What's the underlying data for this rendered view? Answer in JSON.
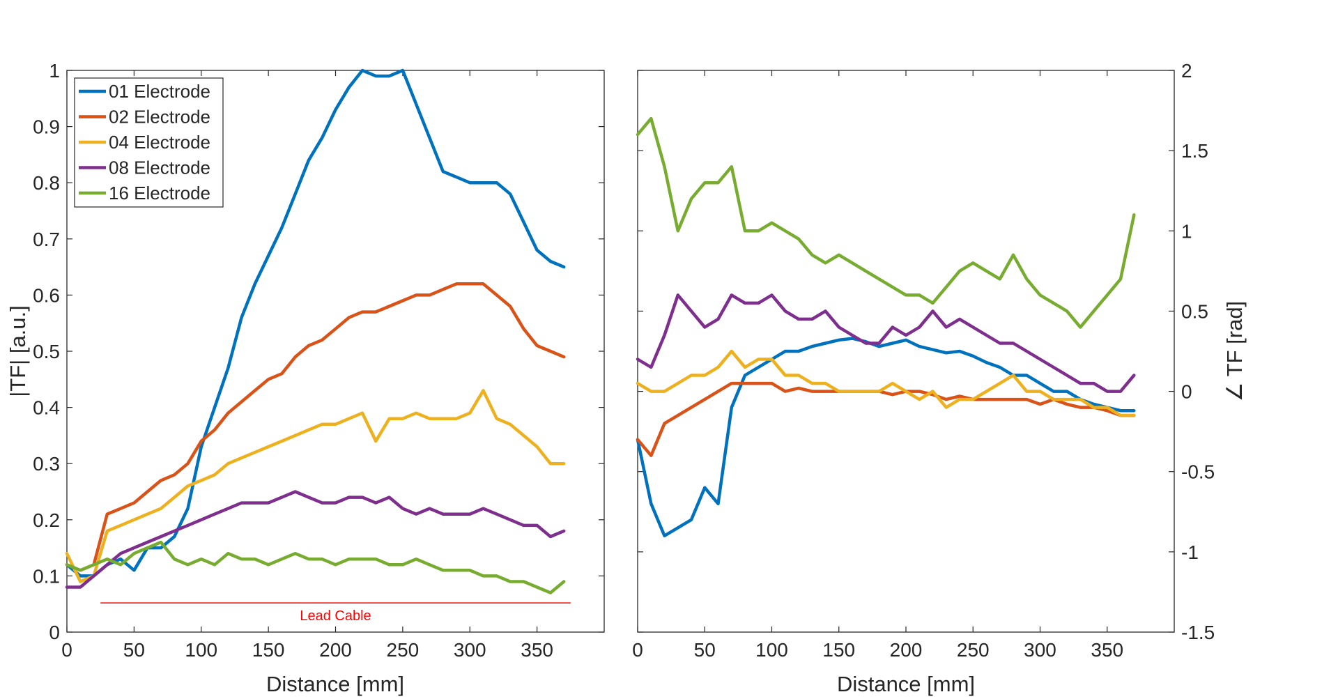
{
  "chart_data": [
    {
      "type": "line",
      "xlabel": "Distance [mm]",
      "ylabel": "|TF| [a.u.]",
      "xlim": [
        0,
        400
      ],
      "ylim": [
        0,
        1
      ],
      "xticks": [
        "0",
        "50",
        "100",
        "150",
        "200",
        "250",
        "300",
        "350"
      ],
      "xtick_values": [
        0,
        50,
        100,
        150,
        200,
        250,
        300,
        350
      ],
      "yticks": [
        "0",
        "0.1",
        "0.2",
        "0.3",
        "0.4",
        "0.5",
        "0.6",
        "0.7",
        "0.8",
        "0.9",
        "1"
      ],
      "ytick_values": [
        0,
        0.1,
        0.2,
        0.3,
        0.4,
        0.5,
        0.6,
        0.7,
        0.8,
        0.9,
        1
      ],
      "grid": false,
      "legend_position": "top-left",
      "annotation": {
        "text": "Lead Cable",
        "x_start": 25,
        "x_end": 375,
        "y": 0.052,
        "color": "#ff0000"
      },
      "x": [
        0,
        10,
        20,
        30,
        40,
        50,
        60,
        70,
        80,
        90,
        100,
        110,
        120,
        130,
        140,
        150,
        160,
        170,
        180,
        190,
        200,
        210,
        220,
        230,
        240,
        250,
        260,
        270,
        280,
        290,
        300,
        310,
        320,
        330,
        340,
        350,
        360,
        370
      ],
      "series": [
        {
          "name": "01 Electrode",
          "color": "#0072bd",
          "values": [
            0.12,
            0.1,
            0.1,
            0.12,
            0.13,
            0.11,
            0.15,
            0.15,
            0.17,
            0.22,
            0.33,
            0.4,
            0.47,
            0.56,
            0.62,
            0.67,
            0.72,
            0.78,
            0.84,
            0.88,
            0.93,
            0.97,
            1.0,
            0.99,
            0.99,
            1.0,
            0.94,
            0.88,
            0.82,
            0.81,
            0.8,
            0.8,
            0.8,
            0.78,
            0.73,
            0.68,
            0.66,
            0.65
          ]
        },
        {
          "name": "02 Electrode",
          "color": "#d95319",
          "values": [
            0.12,
            0.11,
            0.12,
            0.21,
            0.22,
            0.23,
            0.25,
            0.27,
            0.28,
            0.3,
            0.34,
            0.36,
            0.39,
            0.41,
            0.43,
            0.45,
            0.46,
            0.49,
            0.51,
            0.52,
            0.54,
            0.56,
            0.57,
            0.57,
            0.58,
            0.59,
            0.6,
            0.6,
            0.61,
            0.62,
            0.62,
            0.62,
            0.6,
            0.58,
            0.54,
            0.51,
            0.5,
            0.49
          ]
        },
        {
          "name": "04 Electrode",
          "color": "#edb120",
          "values": [
            0.14,
            0.09,
            0.1,
            0.18,
            0.19,
            0.2,
            0.21,
            0.22,
            0.24,
            0.26,
            0.27,
            0.28,
            0.3,
            0.31,
            0.32,
            0.33,
            0.34,
            0.35,
            0.36,
            0.37,
            0.37,
            0.38,
            0.39,
            0.34,
            0.38,
            0.38,
            0.39,
            0.38,
            0.38,
            0.38,
            0.39,
            0.43,
            0.38,
            0.37,
            0.35,
            0.33,
            0.3,
            0.3
          ]
        },
        {
          "name": "08 Electrode",
          "color": "#7e2f8e",
          "values": [
            0.08,
            0.08,
            0.1,
            0.12,
            0.14,
            0.15,
            0.16,
            0.17,
            0.18,
            0.19,
            0.2,
            0.21,
            0.22,
            0.23,
            0.23,
            0.23,
            0.24,
            0.25,
            0.24,
            0.23,
            0.23,
            0.24,
            0.24,
            0.23,
            0.24,
            0.22,
            0.21,
            0.22,
            0.21,
            0.21,
            0.21,
            0.22,
            0.21,
            0.2,
            0.19,
            0.19,
            0.17,
            0.18
          ]
        },
        {
          "name": "16 Electrode",
          "color": "#77ac30",
          "values": [
            0.12,
            0.11,
            0.12,
            0.13,
            0.12,
            0.14,
            0.15,
            0.16,
            0.13,
            0.12,
            0.13,
            0.12,
            0.14,
            0.13,
            0.13,
            0.12,
            0.13,
            0.14,
            0.13,
            0.13,
            0.12,
            0.13,
            0.13,
            0.13,
            0.12,
            0.12,
            0.13,
            0.12,
            0.11,
            0.11,
            0.11,
            0.1,
            0.1,
            0.09,
            0.09,
            0.08,
            0.07,
            0.09
          ]
        }
      ]
    },
    {
      "type": "line",
      "xlabel": "Distance [mm]",
      "ylabel": "∠ TF [rad]",
      "xlim": [
        0,
        400
      ],
      "ylim": [
        -1.5,
        2
      ],
      "xticks": [
        "0",
        "50",
        "100",
        "150",
        "200",
        "250",
        "300",
        "350"
      ],
      "xtick_values": [
        0,
        50,
        100,
        150,
        200,
        250,
        300,
        350
      ],
      "yticks": [
        "-1.5",
        "-1",
        "-0.5",
        "0",
        "0.5",
        "1",
        "1.5",
        "2"
      ],
      "ytick_values": [
        -1.5,
        -1,
        -0.5,
        0,
        0.5,
        1,
        1.5,
        2
      ],
      "y_axis_side": "right",
      "grid": false,
      "x": [
        0,
        10,
        20,
        30,
        40,
        50,
        60,
        70,
        80,
        90,
        100,
        110,
        120,
        130,
        140,
        150,
        160,
        170,
        180,
        190,
        200,
        210,
        220,
        230,
        240,
        250,
        260,
        270,
        280,
        290,
        300,
        310,
        320,
        330,
        340,
        350,
        360,
        370
      ],
      "series": [
        {
          "name": "01 Electrode",
          "color": "#0072bd",
          "values": [
            -0.3,
            -0.7,
            -0.9,
            -0.85,
            -0.8,
            -0.6,
            -0.7,
            -0.1,
            0.1,
            0.15,
            0.2,
            0.25,
            0.25,
            0.28,
            0.3,
            0.32,
            0.33,
            0.31,
            0.28,
            0.3,
            0.32,
            0.28,
            0.26,
            0.24,
            0.25,
            0.22,
            0.18,
            0.15,
            0.1,
            0.1,
            0.05,
            0.0,
            0.0,
            -0.05,
            -0.08,
            -0.1,
            -0.12,
            -0.12
          ]
        },
        {
          "name": "02 Electrode",
          "color": "#d95319",
          "values": [
            -0.3,
            -0.4,
            -0.2,
            -0.15,
            -0.1,
            -0.05,
            0.0,
            0.05,
            0.05,
            0.05,
            0.05,
            0.0,
            0.02,
            0.0,
            0.0,
            0.0,
            0.0,
            0.0,
            0.0,
            -0.02,
            0.0,
            0.0,
            -0.02,
            -0.05,
            -0.03,
            -0.05,
            -0.05,
            -0.05,
            -0.05,
            -0.05,
            -0.08,
            -0.05,
            -0.08,
            -0.1,
            -0.1,
            -0.12,
            -0.15,
            -0.15
          ]
        },
        {
          "name": "04 Electrode",
          "color": "#edb120",
          "values": [
            0.05,
            0.0,
            0.0,
            0.05,
            0.1,
            0.1,
            0.15,
            0.25,
            0.15,
            0.2,
            0.2,
            0.1,
            0.1,
            0.05,
            0.05,
            0.0,
            0.0,
            0.0,
            0.0,
            0.05,
            0.0,
            -0.05,
            0.0,
            -0.1,
            -0.05,
            -0.05,
            0.0,
            0.05,
            0.1,
            0.0,
            0.0,
            -0.05,
            -0.05,
            -0.05,
            -0.1,
            -0.1,
            -0.15,
            -0.15
          ]
        },
        {
          "name": "08 Electrode",
          "color": "#7e2f8e",
          "values": [
            0.2,
            0.15,
            0.35,
            0.6,
            0.5,
            0.4,
            0.45,
            0.6,
            0.55,
            0.55,
            0.6,
            0.5,
            0.45,
            0.45,
            0.5,
            0.4,
            0.35,
            0.3,
            0.3,
            0.4,
            0.35,
            0.4,
            0.5,
            0.4,
            0.45,
            0.4,
            0.35,
            0.3,
            0.3,
            0.25,
            0.2,
            0.15,
            0.1,
            0.05,
            0.05,
            0.0,
            0.0,
            0.1
          ]
        },
        {
          "name": "16 Electrode",
          "color": "#77ac30",
          "values": [
            1.6,
            1.7,
            1.4,
            1.0,
            1.2,
            1.3,
            1.3,
            1.4,
            1.0,
            1.0,
            1.05,
            1.0,
            0.95,
            0.85,
            0.8,
            0.85,
            0.8,
            0.75,
            0.7,
            0.65,
            0.6,
            0.6,
            0.55,
            0.65,
            0.75,
            0.8,
            0.75,
            0.7,
            0.85,
            0.7,
            0.6,
            0.55,
            0.5,
            0.4,
            0.5,
            0.6,
            0.7,
            1.1
          ]
        }
      ]
    }
  ]
}
